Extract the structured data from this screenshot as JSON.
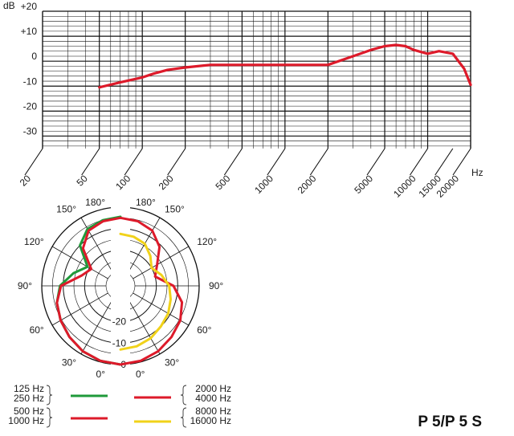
{
  "product": {
    "model": "P 5/P 5 S"
  },
  "colors": {
    "curve_red": "#dd1a2a",
    "green": "#1f9a3a",
    "yellow": "#f1d21a",
    "grid": "#111111"
  },
  "chart_data": [
    {
      "type": "line",
      "title": "",
      "ylabel": "dB",
      "xlabel": "Hz",
      "x_scale": "log",
      "xlim": [
        20,
        20000
      ],
      "ylim": [
        -35,
        20
      ],
      "grid": true,
      "y_ticks": [
        {
          "value": 20,
          "label": "+20"
        },
        {
          "value": 10,
          "label": "+10"
        },
        {
          "value": 0,
          "label": "0"
        },
        {
          "value": -10,
          "label": "-10"
        },
        {
          "value": -20,
          "label": "-20"
        },
        {
          "value": -30,
          "label": "-30"
        }
      ],
      "x_ticks": [
        {
          "value": 20,
          "label": "20"
        },
        {
          "value": 50,
          "label": "50"
        },
        {
          "value": 100,
          "label": "100"
        },
        {
          "value": 200,
          "label": "200"
        },
        {
          "value": 500,
          "label": "500"
        },
        {
          "value": 1000,
          "label": "1000"
        },
        {
          "value": 2000,
          "label": "2000"
        },
        {
          "value": 5000,
          "label": "5000"
        },
        {
          "value": 10000,
          "label": "10000"
        },
        {
          "value": 15000,
          "label": "15000"
        },
        {
          "value": 20000,
          "label": "20000"
        }
      ],
      "series": [
        {
          "color": "#dd1a2a",
          "points": [
            [
              50,
              -10.5
            ],
            [
              70,
              -8.5
            ],
            [
              100,
              -6.5
            ],
            [
              120,
              -5
            ],
            [
              150,
              -3.5
            ],
            [
              200,
              -2.5
            ],
            [
              300,
              -1.5
            ],
            [
              500,
              -1.5
            ],
            [
              1000,
              -1.5
            ],
            [
              2000,
              -1.5
            ],
            [
              3000,
              2
            ],
            [
              4000,
              4.5
            ],
            [
              5000,
              6
            ],
            [
              6000,
              6.5
            ],
            [
              7000,
              6
            ],
            [
              8000,
              4.5
            ],
            [
              10000,
              3
            ],
            [
              12000,
              4
            ],
            [
              15000,
              3
            ],
            [
              18000,
              -3
            ],
            [
              20000,
              -9.5
            ]
          ]
        }
      ]
    },
    {
      "type": "polar",
      "title": "",
      "r_unit": "dB",
      "r_ticks": [
        {
          "value": -20,
          "label": "-20"
        },
        {
          "value": -10,
          "label": "-10"
        },
        {
          "value": 0,
          "label": "0"
        }
      ],
      "angle_labels_left": [
        "180°",
        "150°",
        "120°",
        "90°",
        "60°",
        "30°",
        "0°"
      ],
      "angle_labels_right": [
        "180°",
        "150°",
        "120°",
        "90°",
        "60°",
        "30°",
        "0°"
      ],
      "legend": {
        "left": [
          {
            "labels": [
              "125 Hz",
              "250 Hz"
            ],
            "color": "#1f9a3a"
          },
          {
            "labels": [
              "500 Hz",
              "1000 Hz"
            ],
            "color": "#dd1a2a"
          }
        ],
        "right": [
          {
            "labels": [
              "2000 Hz",
              "4000 Hz"
            ],
            "color": "#dd1a2a"
          },
          {
            "labels": [
              "8000 Hz",
              "16000 Hz"
            ],
            "color": "#f1d21a"
          }
        ]
      },
      "series": [
        {
          "name": "125 Hz / 250 Hz",
          "side": "left",
          "color": "#1f9a3a",
          "points": [
            [
              0,
              0
            ],
            [
              15,
              -0.5
            ],
            [
              30,
              -1.5
            ],
            [
              45,
              -3
            ],
            [
              60,
              -4.5
            ],
            [
              75,
              -6
            ],
            [
              90,
              -8.5
            ],
            [
              105,
              -14
            ],
            [
              120,
              -19
            ],
            [
              135,
              -10
            ],
            [
              150,
              -6
            ],
            [
              165,
              -5
            ],
            [
              180,
              -4.5
            ]
          ]
        },
        {
          "name": "500 Hz / 1000 Hz",
          "side": "left",
          "color": "#dd1a2a",
          "points": [
            [
              0,
              0
            ],
            [
              15,
              -0.5
            ],
            [
              30,
              -1.5
            ],
            [
              45,
              -3
            ],
            [
              60,
              -4.5
            ],
            [
              75,
              -6
            ],
            [
              90,
              -9
            ],
            [
              105,
              -18
            ],
            [
              120,
              -21
            ],
            [
              135,
              -12
            ],
            [
              150,
              -7
            ],
            [
              165,
              -5.5
            ],
            [
              180,
              -5
            ]
          ]
        },
        {
          "name": "2000 Hz / 4000 Hz",
          "side": "right",
          "color": "#dd1a2a",
          "points": [
            [
              0,
              0
            ],
            [
              15,
              -0.5
            ],
            [
              30,
              -1.5
            ],
            [
              45,
              -3
            ],
            [
              60,
              -4.5
            ],
            [
              75,
              -7
            ],
            [
              90,
              -12
            ],
            [
              105,
              -20
            ],
            [
              120,
              -17
            ],
            [
              135,
              -11
            ],
            [
              150,
              -7
            ],
            [
              165,
              -5.5
            ],
            [
              180,
              -5
            ]
          ]
        },
        {
          "name": "8000 Hz / 16000 Hz",
          "side": "right",
          "color": "#f1d21a",
          "points": [
            [
              0,
              -7
            ],
            [
              15,
              -7.5
            ],
            [
              30,
              -8.5
            ],
            [
              45,
              -10
            ],
            [
              60,
              -11
            ],
            [
              75,
              -12.5
            ],
            [
              90,
              -14
            ],
            [
              105,
              -17
            ],
            [
              120,
              -20
            ],
            [
              135,
              -17
            ],
            [
              150,
              -14
            ],
            [
              165,
              -13
            ],
            [
              180,
              -12.5
            ]
          ]
        }
      ]
    }
  ]
}
